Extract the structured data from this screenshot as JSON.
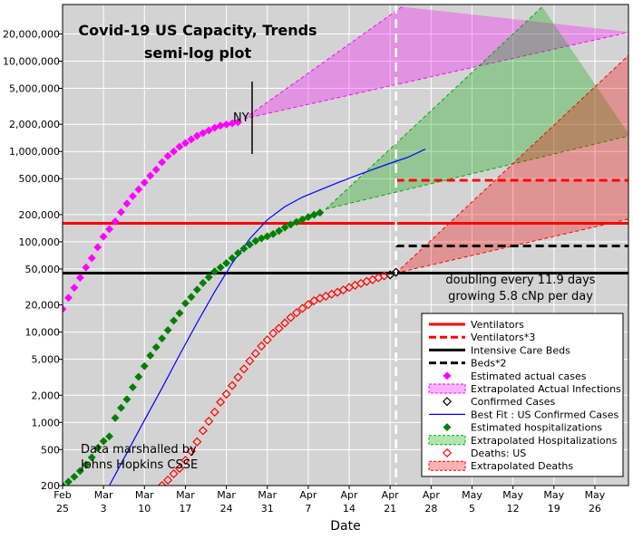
{
  "chart_data": {
    "type": "scatter",
    "title": "Covid-19 US Capacity, Trends",
    "subtitle": "semi-log plot",
    "xlabel": "Date",
    "ylabel": "",
    "yscale": "log",
    "ylim": [
      200,
      35000000
    ],
    "xlim_days_label": [
      "Feb 25",
      "Jun 1"
    ],
    "x_ticks": [
      {
        "top": "Feb",
        "bottom": "25",
        "x": "2020-02-25"
      },
      {
        "top": "Mar",
        "bottom": "3",
        "x": "2020-03-03"
      },
      {
        "top": "Mar",
        "bottom": "10",
        "x": "2020-03-10"
      },
      {
        "top": "Mar",
        "bottom": "17",
        "x": "2020-03-17"
      },
      {
        "top": "Mar",
        "bottom": "24",
        "x": "2020-03-24"
      },
      {
        "top": "Mar",
        "bottom": "31",
        "x": "2020-03-31"
      },
      {
        "top": "Apr",
        "bottom": "7",
        "x": "2020-04-07"
      },
      {
        "top": "Apr",
        "bottom": "14",
        "x": "2020-04-14"
      },
      {
        "top": "Apr",
        "bottom": "21",
        "x": "2020-04-21"
      },
      {
        "top": "Apr",
        "bottom": "28",
        "x": "2020-04-28"
      },
      {
        "top": "May",
        "bottom": "5",
        "x": "2020-05-05"
      },
      {
        "top": "May",
        "bottom": "12",
        "x": "2020-05-12"
      },
      {
        "top": "May",
        "bottom": "19",
        "x": "2020-05-19"
      },
      {
        "top": "May",
        "bottom": "26",
        "x": "2020-05-26"
      }
    ],
    "y_ticks": [
      {
        "label": "200",
        "value": 200
      },
      {
        "label": "500",
        "value": 500
      },
      {
        "label": "1,000",
        "value": 1000
      },
      {
        "label": "2,000",
        "value": 2000
      },
      {
        "label": "5,000",
        "value": 5000
      },
      {
        "label": "10,000",
        "value": 10000
      },
      {
        "label": "20,000",
        "value": 20000
      },
      {
        "label": "50,000",
        "value": 50000
      },
      {
        "label": "100,000",
        "value": 100000
      },
      {
        "label": "200,000",
        "value": 200000
      },
      {
        "label": "500,000",
        "value": 500000
      },
      {
        "label": "1,000,000",
        "value": 1000000
      },
      {
        "label": "2,000,000",
        "value": 2000000
      },
      {
        "label": "5,000,000",
        "value": 5000000
      },
      {
        "label": "10,000,000",
        "value": 10000000
      },
      {
        "label": "20,000,000",
        "value": 20000000
      }
    ],
    "capacity_lines": [
      {
        "name": "Ventilators",
        "value": 160000,
        "color": "#ff0000",
        "dash": false,
        "x_start": "2020-02-25"
      },
      {
        "name": "Ventilators*3",
        "value": 480000,
        "color": "#ff0000",
        "dash": true,
        "x_start": "2020-04-22"
      },
      {
        "name": "Intensive Care Beds",
        "value": 45000,
        "color": "#000000",
        "dash": false,
        "x_start": "2020-02-25"
      },
      {
        "name": "Beds*2",
        "value": 90000,
        "color": "#000000",
        "dash": true,
        "x_start": "2020-04-22"
      }
    ],
    "today": "2020-04-22",
    "series": [
      {
        "name": "Estimated actual cases",
        "marker": "diamond-filled",
        "color": "#ff00ff",
        "x": [
          "2020-02-25",
          "2020-02-26",
          "2020-02-27",
          "2020-02-28",
          "2020-02-29",
          "2020-03-01",
          "2020-03-02",
          "2020-03-03",
          "2020-03-04",
          "2020-03-05",
          "2020-03-06",
          "2020-03-07",
          "2020-03-08",
          "2020-03-09",
          "2020-03-10",
          "2020-03-11",
          "2020-03-12",
          "2020-03-13",
          "2020-03-14",
          "2020-03-15",
          "2020-03-16",
          "2020-03-17",
          "2020-03-18",
          "2020-03-19",
          "2020-03-20",
          "2020-03-21",
          "2020-03-22",
          "2020-03-23",
          "2020-03-24",
          "2020-03-25",
          "2020-03-26"
        ],
        "y": [
          18000,
          24000,
          31000,
          40000,
          52000,
          66000,
          87000,
          114000,
          138000,
          168000,
          213000,
          265000,
          320000,
          380000,
          452000,
          540000,
          630000,
          760000,
          890000,
          1000000,
          1130000,
          1240000,
          1360000,
          1490000,
          1600000,
          1710000,
          1830000,
          1930000,
          1990000,
          2050000,
          2110000
        ]
      },
      {
        "name": "Confirmed Cases",
        "marker": "diamond-open",
        "color": "#000000",
        "x": [
          "2020-04-21",
          "2020-04-22"
        ],
        "y": [
          43000,
          46000
        ]
      },
      {
        "name": "Best Fit : US Confirmed Cases",
        "marker": "line",
        "color": "#0000ff",
        "x": [
          "2020-03-04",
          "2020-03-07",
          "2020-03-10",
          "2020-03-13",
          "2020-03-16",
          "2020-03-19",
          "2020-03-22",
          "2020-03-25",
          "2020-03-28",
          "2020-03-31",
          "2020-04-03",
          "2020-04-06",
          "2020-04-09",
          "2020-04-12",
          "2020-04-15",
          "2020-04-18",
          "2020-04-21",
          "2020-04-24",
          "2020-04-27"
        ],
        "y": [
          200,
          460,
          1060,
          2400,
          5600,
          12700,
          28000,
          58000,
          108000,
          175000,
          245000,
          312000,
          375000,
          450000,
          535000,
          630000,
          740000,
          860000,
          1060000
        ]
      },
      {
        "name": "Estimated hospitalizations",
        "marker": "diamond-filled",
        "color": "#008000",
        "x": [
          "2020-02-25",
          "2020-02-26",
          "2020-02-27",
          "2020-02-28",
          "2020-02-29",
          "2020-03-01",
          "2020-03-02",
          "2020-03-03",
          "2020-03-04",
          "2020-03-05",
          "2020-03-06",
          "2020-03-07",
          "2020-03-08",
          "2020-03-09",
          "2020-03-10",
          "2020-03-11",
          "2020-03-12",
          "2020-03-13",
          "2020-03-14",
          "2020-03-15",
          "2020-03-16",
          "2020-03-17",
          "2020-03-18",
          "2020-03-19",
          "2020-03-20",
          "2020-03-21",
          "2020-03-22",
          "2020-03-23",
          "2020-03-24",
          "2020-03-25",
          "2020-03-26",
          "2020-03-27",
          "2020-03-28",
          "2020-03-29",
          "2020-03-30",
          "2020-03-31",
          "2020-04-01",
          "2020-04-02",
          "2020-04-03",
          "2020-04-04",
          "2020-04-05",
          "2020-04-06",
          "2020-04-07",
          "2020-04-08",
          "2020-04-09"
        ],
        "y": [
          200,
          220,
          250,
          290,
          340,
          410,
          520,
          620,
          700,
          1120,
          1450,
          1800,
          2450,
          3200,
          4200,
          5500,
          6800,
          8500,
          10500,
          13400,
          16200,
          20800,
          24500,
          29500,
          35000,
          40500,
          47000,
          52000,
          58000,
          66000,
          75000,
          84000,
          93000,
          102000,
          109000,
          115000,
          122000,
          132000,
          144000,
          155000,
          166000,
          177000,
          188000,
          199000,
          210000
        ]
      },
      {
        "name": "Deaths: US",
        "marker": "diamond-open",
        "color": "#ff0000",
        "x": [
          "2020-03-13",
          "2020-03-14",
          "2020-03-15",
          "2020-03-16",
          "2020-03-17",
          "2020-03-18",
          "2020-03-19",
          "2020-03-20",
          "2020-03-21",
          "2020-03-22",
          "2020-03-23",
          "2020-03-24",
          "2020-03-25",
          "2020-03-26",
          "2020-03-27",
          "2020-03-28",
          "2020-03-29",
          "2020-03-30",
          "2020-03-31",
          "2020-04-01",
          "2020-04-02",
          "2020-04-03",
          "2020-04-04",
          "2020-04-05",
          "2020-04-06",
          "2020-04-07",
          "2020-04-08",
          "2020-04-09",
          "2020-04-10",
          "2020-04-11",
          "2020-04-12",
          "2020-04-13",
          "2020-04-14",
          "2020-04-15",
          "2020-04-16",
          "2020-04-17",
          "2020-04-18",
          "2020-04-19",
          "2020-04-20"
        ],
        "y": [
          200,
          230,
          270,
          310,
          380,
          480,
          610,
          810,
          1030,
          1300,
          1680,
          2060,
          2560,
          3160,
          3900,
          4800,
          5800,
          7000,
          8200,
          9700,
          11000,
          12600,
          14500,
          16400,
          18300,
          20200,
          22200,
          23700,
          25000,
          26300,
          27600,
          29300,
          31200,
          33000,
          34600,
          36400,
          38000,
          40000,
          42000
        ]
      }
    ],
    "extrapolations": [
      {
        "name": "Extrapolated Actual Infections",
        "color": "#ff00ff",
        "start": {
          "x": "2020-03-27",
          "y": 2300000
        },
        "upper_end": {
          "x": "2020-04-23",
          "y": 40000000
        },
        "lower_end": {
          "x": "2020-06-01",
          "y": 21000000
        }
      },
      {
        "name": "Extrapolated Hospitalizations",
        "color": "#00aa00",
        "start": {
          "x": "2020-04-10",
          "y": 230000
        },
        "upper_end": {
          "x": "2020-05-17",
          "y": 40000000
        },
        "lower_end": {
          "x": "2020-06-01",
          "y": 1500000
        }
      },
      {
        "name": "Extrapolated Deaths",
        "color": "#ff0000",
        "start": {
          "x": "2020-04-22",
          "y": 45000
        },
        "upper_end": {
          "x": "2020-06-01",
          "y": 12000000
        },
        "lower_end": {
          "x": "2020-06-01",
          "y": 180000
        }
      }
    ],
    "legend_position": "lower-right"
  },
  "annotations": {
    "ny_label": "NY",
    "doubling_line1": "doubling every 11.9 days",
    "doubling_line2": "growing 5.8 cNp per day",
    "source_line1": "Data marshalled by",
    "source_line2": "Johns Hopkins CSSE"
  },
  "legend": [
    {
      "label": "Ventilators",
      "kind": "line",
      "color": "#ff0000",
      "dash": false
    },
    {
      "label": "Ventilators*3",
      "kind": "line",
      "color": "#ff0000",
      "dash": true
    },
    {
      "label": "Intensive Care Beds",
      "kind": "line",
      "color": "#000000",
      "dash": false
    },
    {
      "label": "Beds*2",
      "kind": "line",
      "color": "#000000",
      "dash": true
    },
    {
      "label": "Estimated actual cases",
      "kind": "diamond",
      "color": "#ff00ff",
      "fill": true
    },
    {
      "label": "Extrapolated Actual Infections",
      "kind": "patch",
      "color": "#ff00ff"
    },
    {
      "label": "Confirmed Cases",
      "kind": "diamond",
      "color": "#000000",
      "fill": false
    },
    {
      "label": "Best Fit : US Confirmed Cases",
      "kind": "line",
      "color": "#0000ff",
      "dash": false,
      "thin": true
    },
    {
      "label": "Estimated hospitalizations",
      "kind": "diamond",
      "color": "#008000",
      "fill": true
    },
    {
      "label": "Extrapolated Hospitalizations",
      "kind": "patch",
      "color": "#00aa00"
    },
    {
      "label": "Deaths: US",
      "kind": "diamond",
      "color": "#ff0000",
      "fill": false
    },
    {
      "label": "Extrapolated Deaths",
      "kind": "patch",
      "color": "#ff0000"
    }
  ]
}
